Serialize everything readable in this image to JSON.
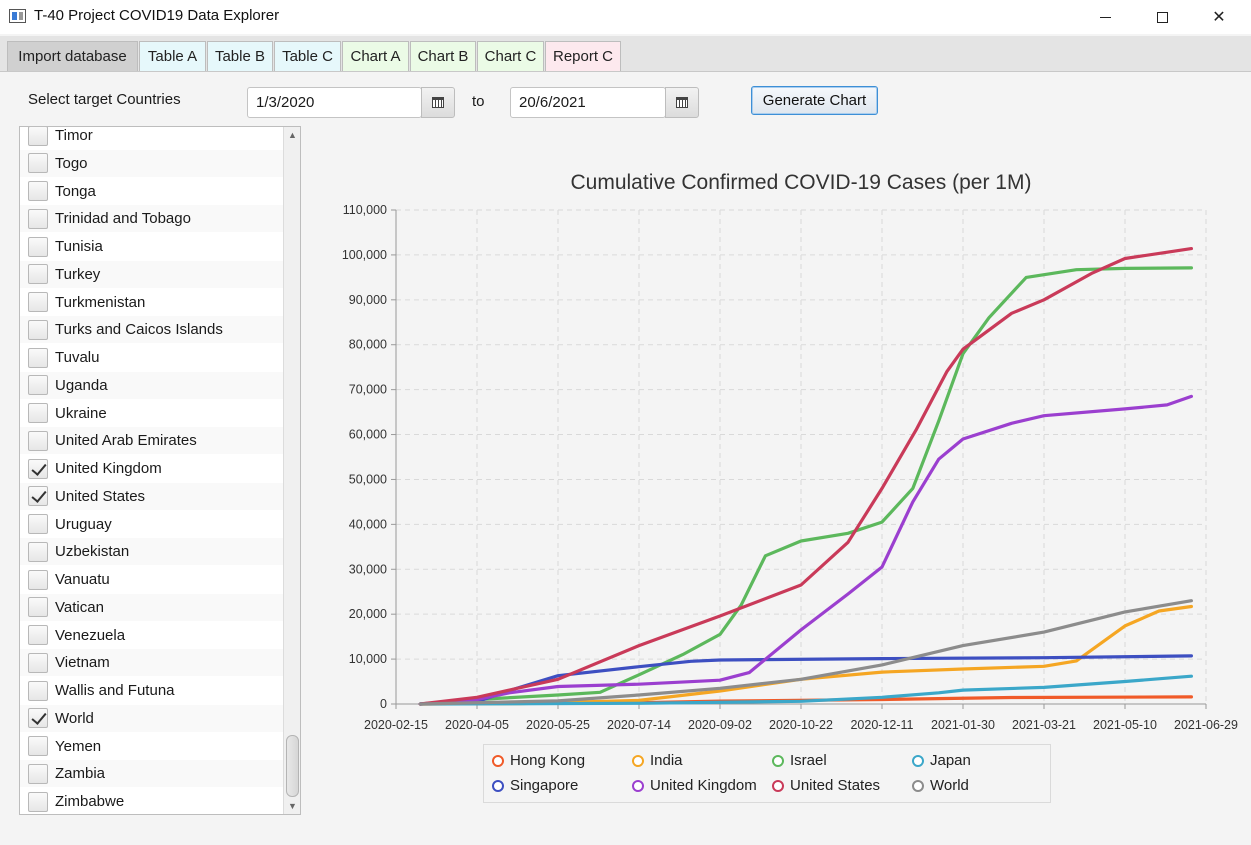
{
  "window": {
    "title": "T-40 Project COVID19 Data Explorer",
    "icon": "app-window-icon"
  },
  "tabs": [
    {
      "label": "Import database",
      "color": "#d0d0d0",
      "active": true
    },
    {
      "label": "Table A",
      "color": "#e6f8fb"
    },
    {
      "label": "Table B",
      "color": "#e6f8fb"
    },
    {
      "label": "Table C",
      "color": "#e6f8fb"
    },
    {
      "label": "Chart A",
      "color": "#ebfbe6"
    },
    {
      "label": "Chart B",
      "color": "#ebfbe6"
    },
    {
      "label": "Chart C",
      "color": "#ebfbe6"
    },
    {
      "label": "Report C",
      "color": "#fde9ee"
    }
  ],
  "controls": {
    "select_label": "Select target Countries",
    "start_date": "1/3/2020",
    "to_label": "to",
    "end_date": "20/6/2021",
    "generate_label": "Generate Chart",
    "calendar_icon": "calendar-icon"
  },
  "countries": [
    {
      "name": "Timor",
      "checked": false
    },
    {
      "name": "Togo",
      "checked": false
    },
    {
      "name": "Tonga",
      "checked": false
    },
    {
      "name": "Trinidad and Tobago",
      "checked": false
    },
    {
      "name": "Tunisia",
      "checked": false
    },
    {
      "name": "Turkey",
      "checked": false
    },
    {
      "name": "Turkmenistan",
      "checked": false
    },
    {
      "name": "Turks and Caicos Islands",
      "checked": false
    },
    {
      "name": "Tuvalu",
      "checked": false
    },
    {
      "name": "Uganda",
      "checked": false
    },
    {
      "name": "Ukraine",
      "checked": false
    },
    {
      "name": "United Arab Emirates",
      "checked": false
    },
    {
      "name": "United Kingdom",
      "checked": true
    },
    {
      "name": "United States",
      "checked": true
    },
    {
      "name": "Uruguay",
      "checked": false
    },
    {
      "name": "Uzbekistan",
      "checked": false
    },
    {
      "name": "Vanuatu",
      "checked": false
    },
    {
      "name": "Vatican",
      "checked": false
    },
    {
      "name": "Venezuela",
      "checked": false
    },
    {
      "name": "Vietnam",
      "checked": false
    },
    {
      "name": "Wallis and Futuna",
      "checked": false
    },
    {
      "name": "World",
      "checked": true
    },
    {
      "name": "Yemen",
      "checked": false
    },
    {
      "name": "Zambia",
      "checked": false
    },
    {
      "name": "Zimbabwe",
      "checked": false
    }
  ],
  "chart_data": {
    "type": "line",
    "title": "Cumulative Confirmed COVID-19 Cases (per 1M)",
    "xlabel": "",
    "ylabel": "",
    "ylim": [
      0,
      110000
    ],
    "y_ticks": [
      0,
      10000,
      20000,
      30000,
      40000,
      50000,
      60000,
      70000,
      80000,
      90000,
      100000,
      110000
    ],
    "y_tick_labels": [
      "0",
      "10,000",
      "20,000",
      "30,000",
      "40,000",
      "50,000",
      "60,000",
      "70,000",
      "80,000",
      "90,000",
      "100,000",
      "110,000"
    ],
    "x_tick_labels": [
      "2020-02-15",
      "2020-04-05",
      "2020-05-25",
      "2020-07-14",
      "2020-09-02",
      "2020-10-22",
      "2020-12-11",
      "2021-01-30",
      "2021-03-21",
      "2021-05-10",
      "2021-06-29"
    ],
    "xlim": [
      "2020-02-15",
      "2021-06-29"
    ],
    "grid": true,
    "legend_position": "bottom",
    "series": [
      {
        "name": "Hong Kong",
        "color": "#f05a28",
        "points": [
          [
            "2020-03-01",
            0
          ],
          [
            "2020-05-01",
            200
          ],
          [
            "2020-07-14",
            300
          ],
          [
            "2020-09-02",
            650
          ],
          [
            "2020-12-11",
            1000
          ],
          [
            "2021-03-01",
            1450
          ],
          [
            "2021-06-20",
            1590
          ]
        ]
      },
      {
        "name": "India",
        "color": "#f5a623",
        "points": [
          [
            "2020-03-01",
            0
          ],
          [
            "2020-05-01",
            100
          ],
          [
            "2020-07-14",
            800
          ],
          [
            "2020-09-02",
            2900
          ],
          [
            "2020-10-22",
            5500
          ],
          [
            "2020-12-11",
            7100
          ],
          [
            "2021-01-30",
            7800
          ],
          [
            "2021-03-21",
            8400
          ],
          [
            "2021-04-10",
            9600
          ],
          [
            "2021-05-10",
            17400
          ],
          [
            "2021-05-31",
            20700
          ],
          [
            "2021-06-20",
            21700
          ]
        ]
      },
      {
        "name": "Israel",
        "color": "#5cb85c",
        "points": [
          [
            "2020-03-01",
            0
          ],
          [
            "2020-04-05",
            1000
          ],
          [
            "2020-05-25",
            2000
          ],
          [
            "2020-06-20",
            2600
          ],
          [
            "2020-07-14",
            6500
          ],
          [
            "2020-08-10",
            11000
          ],
          [
            "2020-09-02",
            15500
          ],
          [
            "2020-09-15",
            22000
          ],
          [
            "2020-09-30",
            33000
          ],
          [
            "2020-10-22",
            36300
          ],
          [
            "2020-11-20",
            38000
          ],
          [
            "2020-12-11",
            40500
          ],
          [
            "2020-12-30",
            48000
          ],
          [
            "2021-01-15",
            63000
          ],
          [
            "2021-01-30",
            78000
          ],
          [
            "2021-02-15",
            86000
          ],
          [
            "2021-03-10",
            95000
          ],
          [
            "2021-04-10",
            96700
          ],
          [
            "2021-05-10",
            97000
          ],
          [
            "2021-06-20",
            97100
          ]
        ]
      },
      {
        "name": "Japan",
        "color": "#3ba7c9",
        "points": [
          [
            "2020-03-01",
            0
          ],
          [
            "2020-07-14",
            150
          ],
          [
            "2020-10-22",
            600
          ],
          [
            "2020-12-11",
            1500
          ],
          [
            "2021-01-15",
            2500
          ],
          [
            "2021-01-30",
            3100
          ],
          [
            "2021-03-21",
            3700
          ],
          [
            "2021-05-10",
            5000
          ],
          [
            "2021-06-20",
            6200
          ]
        ]
      },
      {
        "name": "Singapore",
        "color": "#3d4fc1",
        "points": [
          [
            "2020-03-01",
            0
          ],
          [
            "2020-04-05",
            500
          ],
          [
            "2020-04-25",
            3000
          ],
          [
            "2020-05-25",
            6300
          ],
          [
            "2020-07-14",
            8300
          ],
          [
            "2020-08-15",
            9500
          ],
          [
            "2020-09-02",
            9800
          ],
          [
            "2020-12-11",
            10100
          ],
          [
            "2021-03-21",
            10300
          ],
          [
            "2021-06-20",
            10700
          ]
        ]
      },
      {
        "name": "United Kingdom",
        "color": "#9b3fcf",
        "points": [
          [
            "2020-03-01",
            0
          ],
          [
            "2020-04-05",
            1000
          ],
          [
            "2020-04-25",
            2500
          ],
          [
            "2020-05-25",
            3900
          ],
          [
            "2020-07-14",
            4400
          ],
          [
            "2020-09-02",
            5300
          ],
          [
            "2020-09-20",
            7000
          ],
          [
            "2020-10-22",
            16500
          ],
          [
            "2020-11-20",
            24500
          ],
          [
            "2020-12-11",
            30500
          ],
          [
            "2020-12-30",
            45000
          ],
          [
            "2021-01-15",
            54500
          ],
          [
            "2021-01-30",
            59000
          ],
          [
            "2021-03-01",
            62500
          ],
          [
            "2021-03-21",
            64200
          ],
          [
            "2021-05-10",
            65700
          ],
          [
            "2021-06-05",
            66600
          ],
          [
            "2021-06-20",
            68500
          ]
        ]
      },
      {
        "name": "United States",
        "color": "#c93a59",
        "points": [
          [
            "2020-03-01",
            0
          ],
          [
            "2020-04-05",
            1500
          ],
          [
            "2020-05-25",
            5500
          ],
          [
            "2020-07-14",
            13000
          ],
          [
            "2020-09-02",
            19600
          ],
          [
            "2020-10-22",
            26500
          ],
          [
            "2020-11-20",
            36000
          ],
          [
            "2020-12-11",
            48000
          ],
          [
            "2021-01-01",
            61000
          ],
          [
            "2021-01-20",
            74000
          ],
          [
            "2021-01-30",
            79000
          ],
          [
            "2021-03-01",
            87000
          ],
          [
            "2021-03-21",
            90000
          ],
          [
            "2021-04-20",
            96000
          ],
          [
            "2021-05-10",
            99200
          ],
          [
            "2021-06-20",
            101400
          ]
        ]
      },
      {
        "name": "World",
        "color": "#8c8c8c",
        "points": [
          [
            "2020-03-01",
            0
          ],
          [
            "2020-05-25",
            700
          ],
          [
            "2020-07-14",
            2000
          ],
          [
            "2020-09-02",
            3500
          ],
          [
            "2020-10-22",
            5500
          ],
          [
            "2020-12-11",
            8700
          ],
          [
            "2021-01-30",
            13000
          ],
          [
            "2021-03-21",
            16000
          ],
          [
            "2021-05-10",
            20500
          ],
          [
            "2021-06-20",
            23000
          ]
        ]
      }
    ]
  }
}
